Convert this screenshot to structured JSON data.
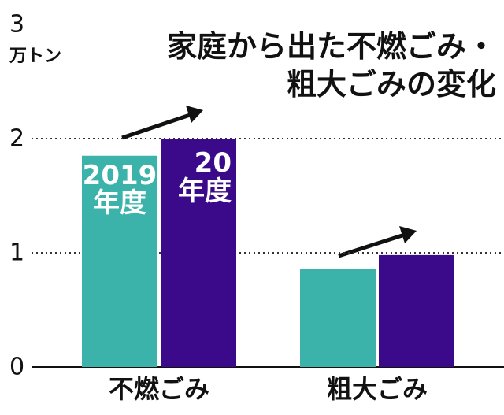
{
  "chart_data": {
    "type": "bar",
    "title": [
      "家庭から出た不燃ごみ・",
      "粗大ごみの変化"
    ],
    "y_unit": "万トン",
    "categories": [
      "不燃ごみ",
      "粗大ごみ"
    ],
    "series": [
      {
        "name": "2019\n年度",
        "color": "#3bb3aa",
        "values": [
          1.85,
          0.86
        ]
      },
      {
        "name": "20\n年度",
        "color": "#3a0a8a",
        "values": [
          2.0,
          0.98
        ]
      }
    ],
    "ylim": [
      0,
      3
    ],
    "yticks": [
      0,
      1,
      2,
      3
    ],
    "grid": true
  }
}
